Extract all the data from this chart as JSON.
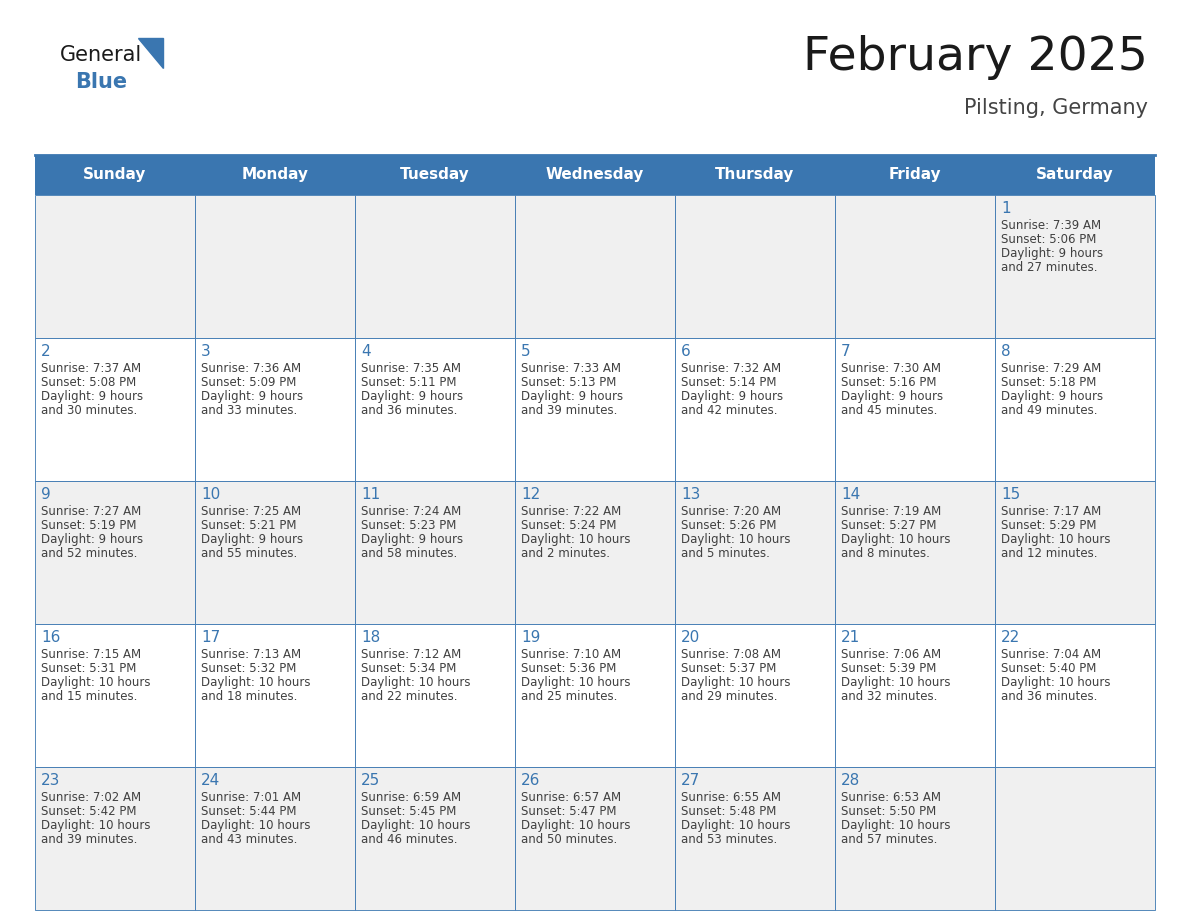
{
  "title": "February 2025",
  "subtitle": "Pilsting, Germany",
  "days_of_week": [
    "Sunday",
    "Monday",
    "Tuesday",
    "Wednesday",
    "Thursday",
    "Friday",
    "Saturday"
  ],
  "header_bg": "#3a76b0",
  "header_text": "#ffffff",
  "cell_bg_odd": "#f0f0f0",
  "cell_bg_even": "#ffffff",
  "border_color": "#3a76b0",
  "day_num_color": "#3a76b0",
  "info_color": "#404040",
  "title_color": "#1a1a1a",
  "subtitle_color": "#444444",
  "logo_general_color": "#1a1a1a",
  "logo_blue_color": "#3a76b0",
  "calendar": [
    [
      null,
      null,
      null,
      null,
      null,
      null,
      {
        "day": 1,
        "sunrise": "7:39 AM",
        "sunset": "5:06 PM",
        "daylight_line1": "Daylight: 9 hours",
        "daylight_line2": "and 27 minutes."
      }
    ],
    [
      {
        "day": 2,
        "sunrise": "7:37 AM",
        "sunset": "5:08 PM",
        "daylight_line1": "Daylight: 9 hours",
        "daylight_line2": "and 30 minutes."
      },
      {
        "day": 3,
        "sunrise": "7:36 AM",
        "sunset": "5:09 PM",
        "daylight_line1": "Daylight: 9 hours",
        "daylight_line2": "and 33 minutes."
      },
      {
        "day": 4,
        "sunrise": "7:35 AM",
        "sunset": "5:11 PM",
        "daylight_line1": "Daylight: 9 hours",
        "daylight_line2": "and 36 minutes."
      },
      {
        "day": 5,
        "sunrise": "7:33 AM",
        "sunset": "5:13 PM",
        "daylight_line1": "Daylight: 9 hours",
        "daylight_line2": "and 39 minutes."
      },
      {
        "day": 6,
        "sunrise": "7:32 AM",
        "sunset": "5:14 PM",
        "daylight_line1": "Daylight: 9 hours",
        "daylight_line2": "and 42 minutes."
      },
      {
        "day": 7,
        "sunrise": "7:30 AM",
        "sunset": "5:16 PM",
        "daylight_line1": "Daylight: 9 hours",
        "daylight_line2": "and 45 minutes."
      },
      {
        "day": 8,
        "sunrise": "7:29 AM",
        "sunset": "5:18 PM",
        "daylight_line1": "Daylight: 9 hours",
        "daylight_line2": "and 49 minutes."
      }
    ],
    [
      {
        "day": 9,
        "sunrise": "7:27 AM",
        "sunset": "5:19 PM",
        "daylight_line1": "Daylight: 9 hours",
        "daylight_line2": "and 52 minutes."
      },
      {
        "day": 10,
        "sunrise": "7:25 AM",
        "sunset": "5:21 PM",
        "daylight_line1": "Daylight: 9 hours",
        "daylight_line2": "and 55 minutes."
      },
      {
        "day": 11,
        "sunrise": "7:24 AM",
        "sunset": "5:23 PM",
        "daylight_line1": "Daylight: 9 hours",
        "daylight_line2": "and 58 minutes."
      },
      {
        "day": 12,
        "sunrise": "7:22 AM",
        "sunset": "5:24 PM",
        "daylight_line1": "Daylight: 10 hours",
        "daylight_line2": "and 2 minutes."
      },
      {
        "day": 13,
        "sunrise": "7:20 AM",
        "sunset": "5:26 PM",
        "daylight_line1": "Daylight: 10 hours",
        "daylight_line2": "and 5 minutes."
      },
      {
        "day": 14,
        "sunrise": "7:19 AM",
        "sunset": "5:27 PM",
        "daylight_line1": "Daylight: 10 hours",
        "daylight_line2": "and 8 minutes."
      },
      {
        "day": 15,
        "sunrise": "7:17 AM",
        "sunset": "5:29 PM",
        "daylight_line1": "Daylight: 10 hours",
        "daylight_line2": "and 12 minutes."
      }
    ],
    [
      {
        "day": 16,
        "sunrise": "7:15 AM",
        "sunset": "5:31 PM",
        "daylight_line1": "Daylight: 10 hours",
        "daylight_line2": "and 15 minutes."
      },
      {
        "day": 17,
        "sunrise": "7:13 AM",
        "sunset": "5:32 PM",
        "daylight_line1": "Daylight: 10 hours",
        "daylight_line2": "and 18 minutes."
      },
      {
        "day": 18,
        "sunrise": "7:12 AM",
        "sunset": "5:34 PM",
        "daylight_line1": "Daylight: 10 hours",
        "daylight_line2": "and 22 minutes."
      },
      {
        "day": 19,
        "sunrise": "7:10 AM",
        "sunset": "5:36 PM",
        "daylight_line1": "Daylight: 10 hours",
        "daylight_line2": "and 25 minutes."
      },
      {
        "day": 20,
        "sunrise": "7:08 AM",
        "sunset": "5:37 PM",
        "daylight_line1": "Daylight: 10 hours",
        "daylight_line2": "and 29 minutes."
      },
      {
        "day": 21,
        "sunrise": "7:06 AM",
        "sunset": "5:39 PM",
        "daylight_line1": "Daylight: 10 hours",
        "daylight_line2": "and 32 minutes."
      },
      {
        "day": 22,
        "sunrise": "7:04 AM",
        "sunset": "5:40 PM",
        "daylight_line1": "Daylight: 10 hours",
        "daylight_line2": "and 36 minutes."
      }
    ],
    [
      {
        "day": 23,
        "sunrise": "7:02 AM",
        "sunset": "5:42 PM",
        "daylight_line1": "Daylight: 10 hours",
        "daylight_line2": "and 39 minutes."
      },
      {
        "day": 24,
        "sunrise": "7:01 AM",
        "sunset": "5:44 PM",
        "daylight_line1": "Daylight: 10 hours",
        "daylight_line2": "and 43 minutes."
      },
      {
        "day": 25,
        "sunrise": "6:59 AM",
        "sunset": "5:45 PM",
        "daylight_line1": "Daylight: 10 hours",
        "daylight_line2": "and 46 minutes."
      },
      {
        "day": 26,
        "sunrise": "6:57 AM",
        "sunset": "5:47 PM",
        "daylight_line1": "Daylight: 10 hours",
        "daylight_line2": "and 50 minutes."
      },
      {
        "day": 27,
        "sunrise": "6:55 AM",
        "sunset": "5:48 PM",
        "daylight_line1": "Daylight: 10 hours",
        "daylight_line2": "and 53 minutes."
      },
      {
        "day": 28,
        "sunrise": "6:53 AM",
        "sunset": "5:50 PM",
        "daylight_line1": "Daylight: 10 hours",
        "daylight_line2": "and 57 minutes."
      },
      null
    ]
  ]
}
